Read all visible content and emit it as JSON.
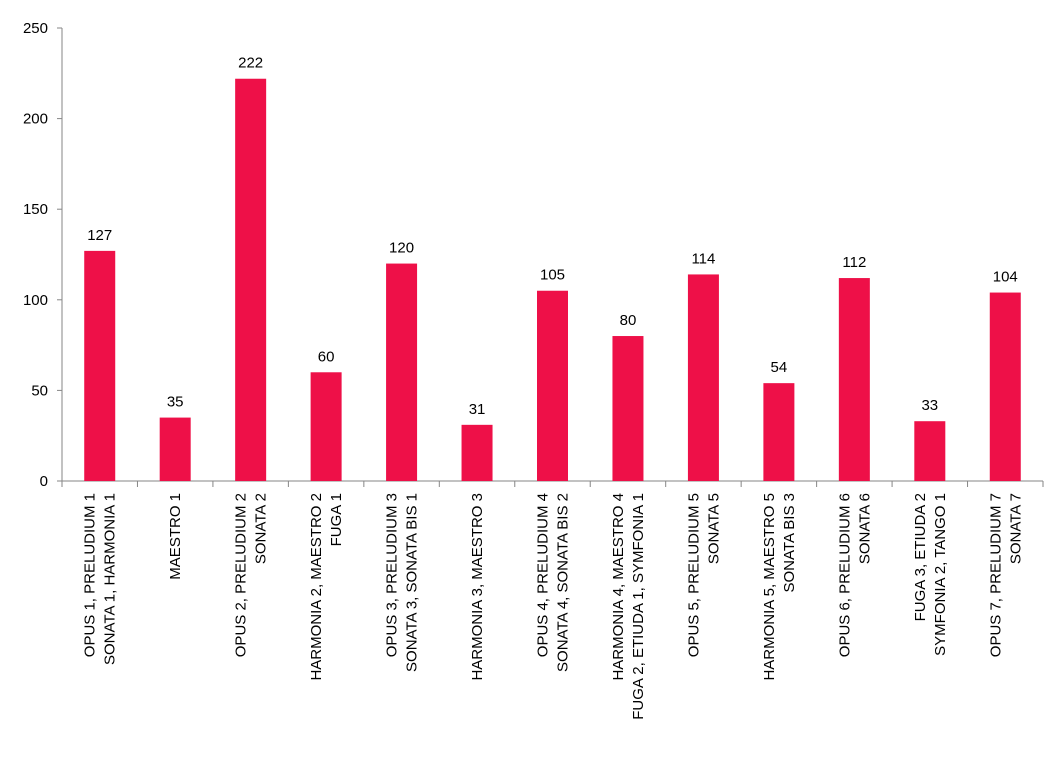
{
  "chart_data": {
    "type": "bar",
    "title": "",
    "xlabel": "",
    "ylabel": "",
    "ylim": [
      0,
      250
    ],
    "yticks": [
      0,
      50,
      100,
      150,
      200,
      250
    ],
    "grid": false,
    "legend": "none",
    "bar_color": "#ee1048",
    "categories": [
      [
        "OPUS 1, PRELUDIUM 1",
        "SONATA 1, HARMONIA 1"
      ],
      [
        "MAESTRO 1"
      ],
      [
        "OPUS 2, PRELUDIUM 2",
        "SONATA 2"
      ],
      [
        "HARMONIA 2, MAESTRO 2",
        "FUGA 1"
      ],
      [
        "OPUS 3, PRELUDIUM 3",
        "SONATA 3, SONATA BIS 1"
      ],
      [
        "HARMONIA 3, MAESTRO 3"
      ],
      [
        "OPUS 4, PRELUDIUM 4",
        "SONATA 4, SONATA BIS 2"
      ],
      [
        "HARMONIA 4, MAESTRO 4",
        "FUGA 2, ETIUDA 1, SYMFONIA 1"
      ],
      [
        "OPUS 5, PRELUDIUM 5",
        "SONATA 5"
      ],
      [
        "HARMONIA 5, MAESTRO 5",
        "SONATA BIS 3"
      ],
      [
        "OPUS 6, PRELUDIUM 6",
        "SONATA 6"
      ],
      [
        "FUGA 3, ETIUDA 2",
        "SYMFONIA 2, TANGO 1"
      ],
      [
        "OPUS 7, PRELUDIUM 7",
        "SONATA 7"
      ]
    ],
    "values": [
      127,
      35,
      222,
      60,
      120,
      31,
      105,
      80,
      114,
      54,
      112,
      33,
      104
    ]
  }
}
